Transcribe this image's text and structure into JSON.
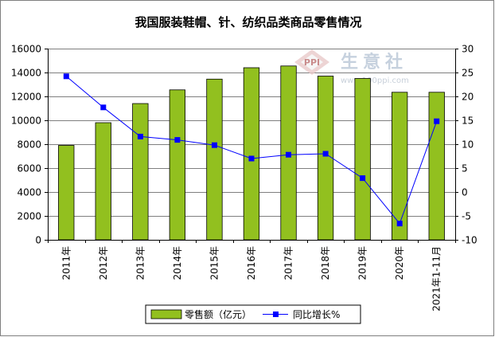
{
  "chart_data": {
    "type": "bar",
    "title": "我国服装鞋帽、针、纺织品类商品零售情况",
    "categories": [
      "2011年",
      "2012年",
      "2013年",
      "2014年",
      "2015年",
      "2016年",
      "2017年",
      "2018年",
      "2019年",
      "2020年",
      "2021年1-11月"
    ],
    "series": [
      {
        "name": "零售额（亿元）",
        "type": "bar",
        "axis": "left",
        "color": "#92c01f",
        "values": [
          7900,
          9800,
          11400,
          12550,
          13450,
          14400,
          14550,
          13700,
          13500,
          12350,
          12350
        ]
      },
      {
        "name": "同比增长%",
        "type": "line",
        "axis": "right",
        "color": "#0000ff",
        "values": [
          24.2,
          17.7,
          11.6,
          10.9,
          9.8,
          7.0,
          7.8,
          8.0,
          2.9,
          -6.6,
          14.8
        ]
      }
    ],
    "y_left": {
      "min": 0,
      "max": 16000,
      "step": 2000,
      "ticks": [
        "0",
        "2000",
        "4000",
        "6000",
        "8000",
        "10000",
        "12000",
        "14000",
        "16000"
      ]
    },
    "y_right": {
      "min": -10,
      "max": 30,
      "step": 5,
      "ticks": [
        "-10",
        "-5",
        "0",
        "5",
        "10",
        "15",
        "20",
        "25",
        "30"
      ]
    },
    "grid": true,
    "legend_placement": "bottom"
  },
  "watermark": {
    "logo_text": "PPI",
    "brand_text": "生意社",
    "url_text": "www.100ppi.com"
  }
}
